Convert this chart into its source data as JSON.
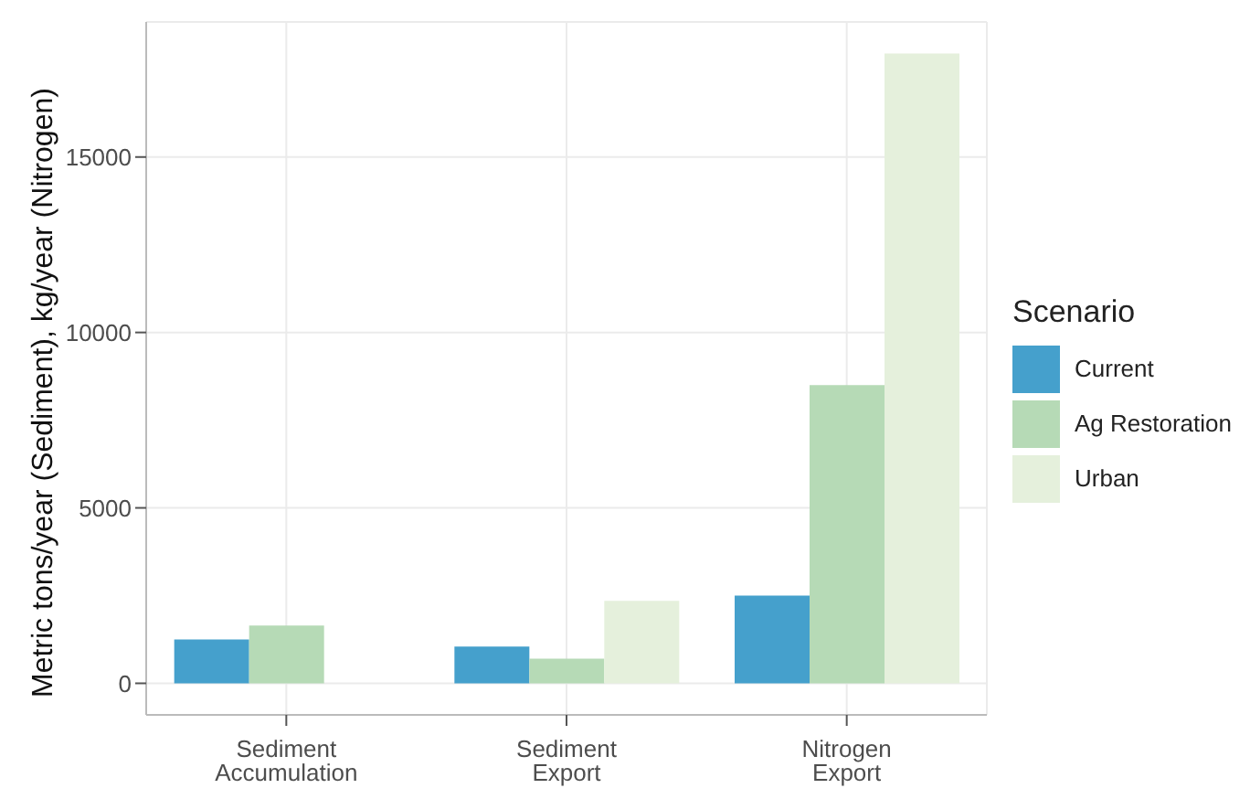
{
  "chart_data": {
    "type": "bar",
    "ylabel": "Metric tons/year (Sediment), kg/year (Nitrogen)",
    "legend_title": "Scenario",
    "categories": [
      "Sediment Accumulation",
      "Sediment Export",
      "Nitrogen Export"
    ],
    "series": [
      {
        "name": "Current",
        "color": "#45a0cc",
        "values": [
          1250,
          1050,
          2500
        ]
      },
      {
        "name": "Ag Restoration",
        "color": "#b6dab6",
        "values": [
          1650,
          700,
          8500
        ]
      },
      {
        "name": "Urban",
        "color": "#e5f0dc",
        "values": [
          null,
          2350,
          17950
        ]
      }
    ],
    "ylim": [
      -900,
      18850
    ],
    "yticks": [
      0,
      5000,
      10000,
      15000
    ],
    "grid": true,
    "legend": "right"
  }
}
